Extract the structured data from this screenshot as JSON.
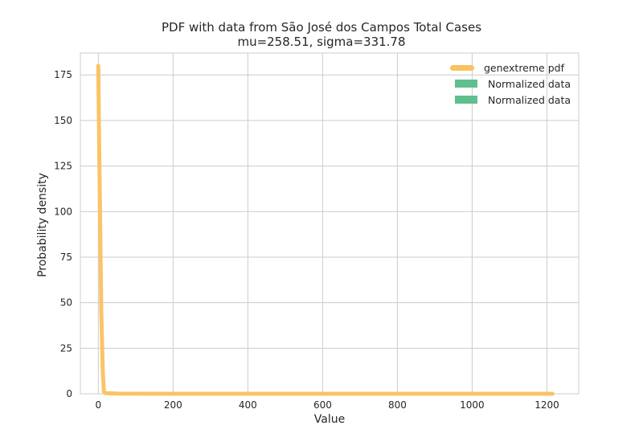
{
  "chart_data": {
    "type": "line",
    "title": "PDF with data from São José dos Campos Total Cases",
    "subtitle": "mu=258.51, sigma=331.78",
    "xlabel": "Value",
    "ylabel": "Probability density",
    "xlim": [
      -48,
      1285
    ],
    "ylim": [
      0,
      187
    ],
    "xticks": [
      0,
      200,
      400,
      600,
      800,
      1000,
      1200
    ],
    "yticks": [
      0,
      25,
      50,
      75,
      100,
      125,
      150,
      175
    ],
    "grid": true,
    "legend_position": "top-right",
    "series": [
      {
        "name": "genextreme pdf",
        "color": "#fbc15e",
        "x": [
          0,
          2,
          5,
          8,
          12,
          15,
          20,
          50,
          100,
          200,
          400,
          600,
          800,
          1000,
          1200,
          1215
        ],
        "y": [
          180,
          140,
          90,
          45,
          12,
          1,
          0.3,
          0.1,
          0.05,
          0.02,
          0.01,
          0.005,
          0.003,
          0.002,
          0.001,
          0.001
        ]
      }
    ],
    "legend": [
      {
        "label": "genextreme pdf",
        "kind": "line",
        "color": "#fbc15e"
      },
      {
        "label": "Normalized data",
        "kind": "patch",
        "color": "#5fbf8f"
      },
      {
        "label": "Normalized data",
        "kind": "patch",
        "color": "#5fbf8f"
      }
    ]
  }
}
